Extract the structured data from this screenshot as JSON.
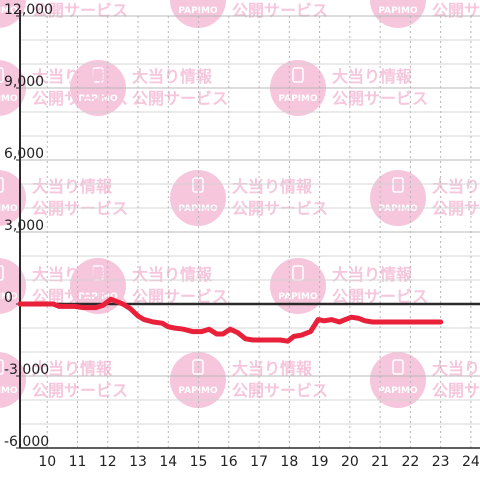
{
  "chart_data": {
    "type": "line",
    "title": "",
    "xlabel": "",
    "ylabel": "",
    "xlim": [
      9.1,
      24.3
    ],
    "ylim": [
      -6000,
      12000
    ],
    "x_ticks": [
      10,
      11,
      12,
      13,
      14,
      15,
      16,
      17,
      18,
      19,
      20,
      21,
      22,
      23,
      24
    ],
    "y_ticks": [
      -6000,
      -3000,
      0,
      3000,
      6000,
      9000,
      12000
    ],
    "y_tick_labels": [
      "-6,000",
      "-3,000",
      "0",
      "3,000",
      "6,000",
      "9,000",
      "12,000"
    ],
    "grid": true,
    "series": [
      {
        "color": "#e8203a",
        "x": [
          9.1,
          10.2,
          10.4,
          10.9,
          11.2,
          11.6,
          11.85,
          12.1,
          12.3,
          12.5,
          12.75,
          13.0,
          13.2,
          13.5,
          13.8,
          14.0,
          14.2,
          14.5,
          14.8,
          15.1,
          15.35,
          15.6,
          15.8,
          16.05,
          16.3,
          16.55,
          16.8,
          17.1,
          17.4,
          17.7,
          17.95,
          18.15,
          18.4,
          18.7,
          18.95,
          19.15,
          19.4,
          19.65,
          19.85,
          20.05,
          20.3,
          20.5,
          20.75,
          21.0,
          21.5,
          22.0,
          22.5,
          23.0
        ],
        "y": [
          0,
          0,
          -100,
          -100,
          -150,
          -150,
          -50,
          200,
          100,
          0,
          -200,
          -500,
          -650,
          -750,
          -800,
          -950,
          -1000,
          -1050,
          -1150,
          -1150,
          -1050,
          -1250,
          -1250,
          -1050,
          -1200,
          -1450,
          -1500,
          -1500,
          -1500,
          -1500,
          -1550,
          -1350,
          -1300,
          -1150,
          -650,
          -700,
          -650,
          -750,
          -650,
          -550,
          -600,
          -700,
          -750,
          -750,
          -750,
          -750,
          -750,
          -750
        ]
      }
    ]
  },
  "watermark": {
    "line1": "大当り情報",
    "line2": "公開サービス",
    "brand": "PAPIMO",
    "color": "#f6c6dc"
  }
}
